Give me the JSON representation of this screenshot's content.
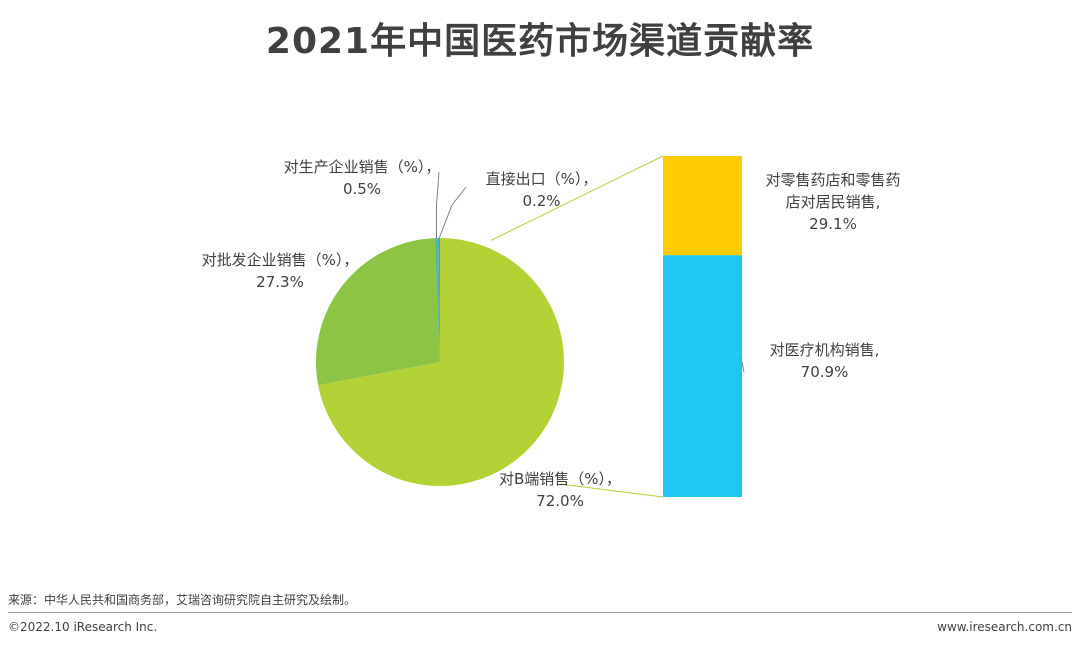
{
  "title": "2021年中国医药市场渠道贡献率",
  "chart_data": {
    "type": "pie",
    "pie": {
      "slices": [
        {
          "label": "对B端销售（%），",
          "value": "72.0%",
          "percent": 72.0,
          "color": "#b3d235"
        },
        {
          "label": "对批发企业销售（%），",
          "value": "27.3%",
          "percent": 27.3,
          "color": "#8cc443"
        },
        {
          "label": "对生产企业销售（%），",
          "value": "0.5%",
          "percent": 0.5,
          "color": "#5ab4a0"
        },
        {
          "label": "直接出口（%），",
          "value": "0.2%",
          "percent": 0.2,
          "color": "#2aa9d8"
        }
      ]
    },
    "breakdown": {
      "of": "对B端销售（%），",
      "segments": [
        {
          "label_line1": "对零售药店和零售药",
          "label_line2": "店对居民销售,",
          "value": "29.1%",
          "percent": 29.1,
          "color": "#ffcc00"
        },
        {
          "label_line1": "对医疗机构销售,",
          "value": "70.9%",
          "percent": 70.9,
          "color": "#1fc7f0"
        }
      ]
    }
  },
  "footer": {
    "source": "来源：中华人民共和国商务部，艾瑞咨询研究院自主研究及绘制。",
    "copyright": "©2022.10 iResearch Inc.",
    "website": "www.iresearch.com.cn"
  }
}
